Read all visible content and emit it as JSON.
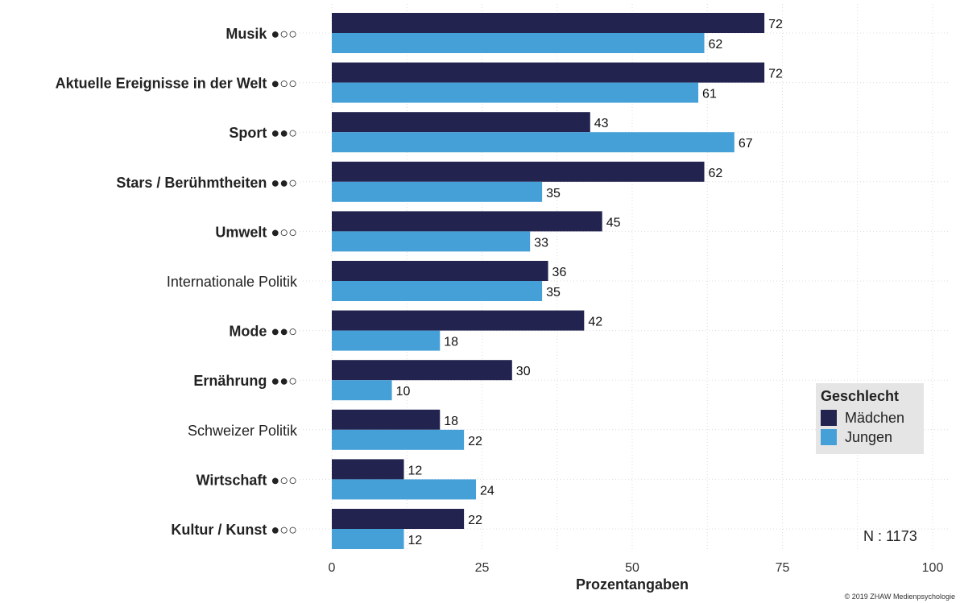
{
  "chart_data": {
    "type": "bar",
    "orientation": "horizontal",
    "categories": [
      "Musik ●○○",
      "Aktuelle Ereignisse in der Welt ●○○",
      "Sport ●●○",
      "Stars / Berühmtheiten ●●○",
      "Umwelt ●○○",
      "Internationale Politik",
      "Mode ●●○",
      "Ernährung ●●○",
      "Schweizer Politik",
      "Wirtschaft ●○○",
      "Kultur / Kunst ●○○"
    ],
    "category_bold": [
      true,
      true,
      true,
      true,
      true,
      false,
      true,
      true,
      false,
      true,
      true
    ],
    "series": [
      {
        "name": "Mädchen",
        "color": "#22234f",
        "values": [
          72,
          72,
          43,
          62,
          45,
          36,
          42,
          30,
          18,
          12,
          22
        ]
      },
      {
        "name": "Jungen",
        "color": "#46a0d8",
        "values": [
          62,
          61,
          67,
          35,
          33,
          35,
          18,
          10,
          22,
          24,
          12
        ]
      }
    ],
    "xlabel": "Prozentangaben",
    "xlim": [
      0,
      100
    ],
    "xticks": [
      0,
      25,
      50,
      75,
      100
    ],
    "grid": true,
    "legend": {
      "title": "Geschlecht",
      "position": "bottom-right"
    }
  },
  "legend_title": "Geschlecht",
  "legend_items": [
    "Mädchen",
    "Jungen"
  ],
  "n_text": "N : 1173",
  "copyright": "© 2019 ZHAW Medienpsychologie"
}
